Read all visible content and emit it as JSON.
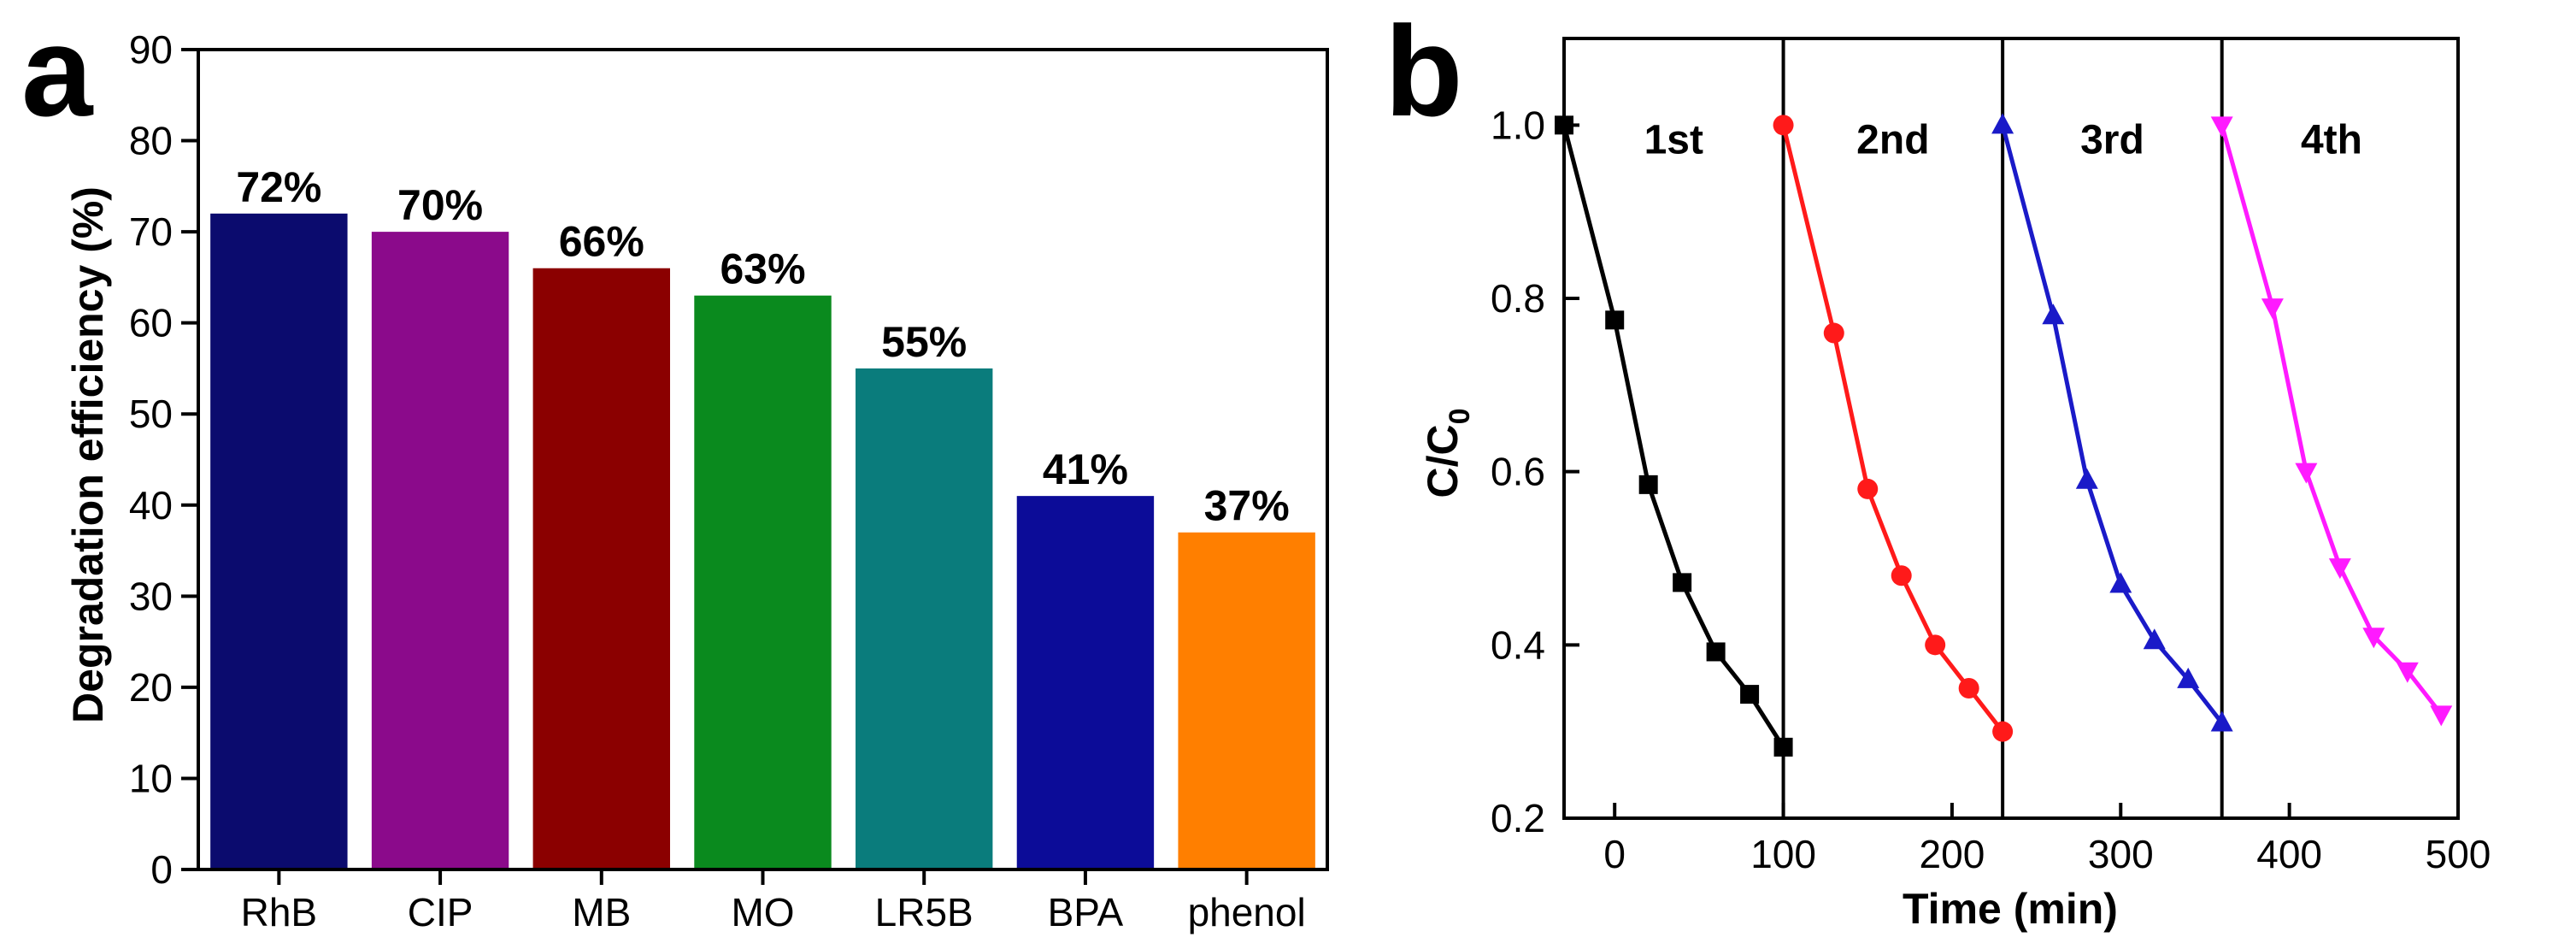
{
  "chart_data": [
    {
      "panel": "a",
      "type": "bar",
      "title": "",
      "xlabel": "",
      "ylabel": "Degradation efficiency (%)",
      "ylim": [
        0,
        90
      ],
      "yticks": [
        0,
        10,
        20,
        30,
        40,
        50,
        60,
        70,
        80,
        90
      ],
      "grid": false,
      "categories": [
        "RhB",
        "CIP",
        "MB",
        "MO",
        "LR5B",
        "BPA",
        "phenol"
      ],
      "values": [
        72,
        70,
        66,
        63,
        55,
        41,
        37
      ],
      "value_labels": [
        "72%",
        "70%",
        "66%",
        "63%",
        "55%",
        "41%",
        "37%"
      ],
      "colors": [
        "#0b0b6e",
        "#8b0a8b",
        "#8b0000",
        "#0a8a1e",
        "#0a7c7c",
        "#0c0c98",
        "#ff7f00"
      ]
    },
    {
      "panel": "b",
      "type": "line",
      "title": "",
      "xlabel": "Time (min)",
      "ylabel": "C/C",
      "ylabel_subscript": "0",
      "xlim": [
        -30,
        500
      ],
      "ylim": [
        0.2,
        1.1
      ],
      "xticks": [
        0,
        100,
        200,
        300,
        400,
        500
      ],
      "yticks": [
        0.2,
        0.4,
        0.6,
        0.8,
        1.0
      ],
      "ytick_labels": [
        "0.2",
        "0.4",
        "0.6",
        "0.8",
        "1.0"
      ],
      "grid": false,
      "separators_x": [
        100,
        230,
        360
      ],
      "series": [
        {
          "name": "1st",
          "color": "#000000",
          "marker": "square",
          "label_pos": {
            "x": 35,
            "y": 0.985
          },
          "x": [
            -30,
            0,
            20,
            40,
            60,
            80,
            100
          ],
          "y": [
            1.0,
            0.775,
            0.585,
            0.472,
            0.392,
            0.343,
            0.282
          ]
        },
        {
          "name": "2nd",
          "color": "#ff1a1a",
          "marker": "circle",
          "label_pos": {
            "x": 165,
            "y": 0.985
          },
          "x": [
            100,
            130,
            150,
            170,
            190,
            210,
            230
          ],
          "y": [
            1.0,
            0.76,
            0.58,
            0.48,
            0.4,
            0.35,
            0.3
          ]
        },
        {
          "name": "3rd",
          "color": "#1a1ac8",
          "marker": "triangle-up",
          "label_pos": {
            "x": 295,
            "y": 0.985
          },
          "x": [
            230,
            260,
            280,
            300,
            320,
            340,
            360
          ],
          "y": [
            1.0,
            0.78,
            0.59,
            0.47,
            0.405,
            0.36,
            0.31
          ]
        },
        {
          "name": "4th",
          "color": "#ff1aff",
          "marker": "triangle-down",
          "label_pos": {
            "x": 425,
            "y": 0.985
          },
          "x": [
            360,
            390,
            410,
            430,
            450,
            470,
            490
          ],
          "y": [
            1.0,
            0.79,
            0.6,
            0.49,
            0.41,
            0.37,
            0.32
          ]
        }
      ]
    }
  ],
  "panel_labels": {
    "a": "a",
    "b": "b"
  }
}
